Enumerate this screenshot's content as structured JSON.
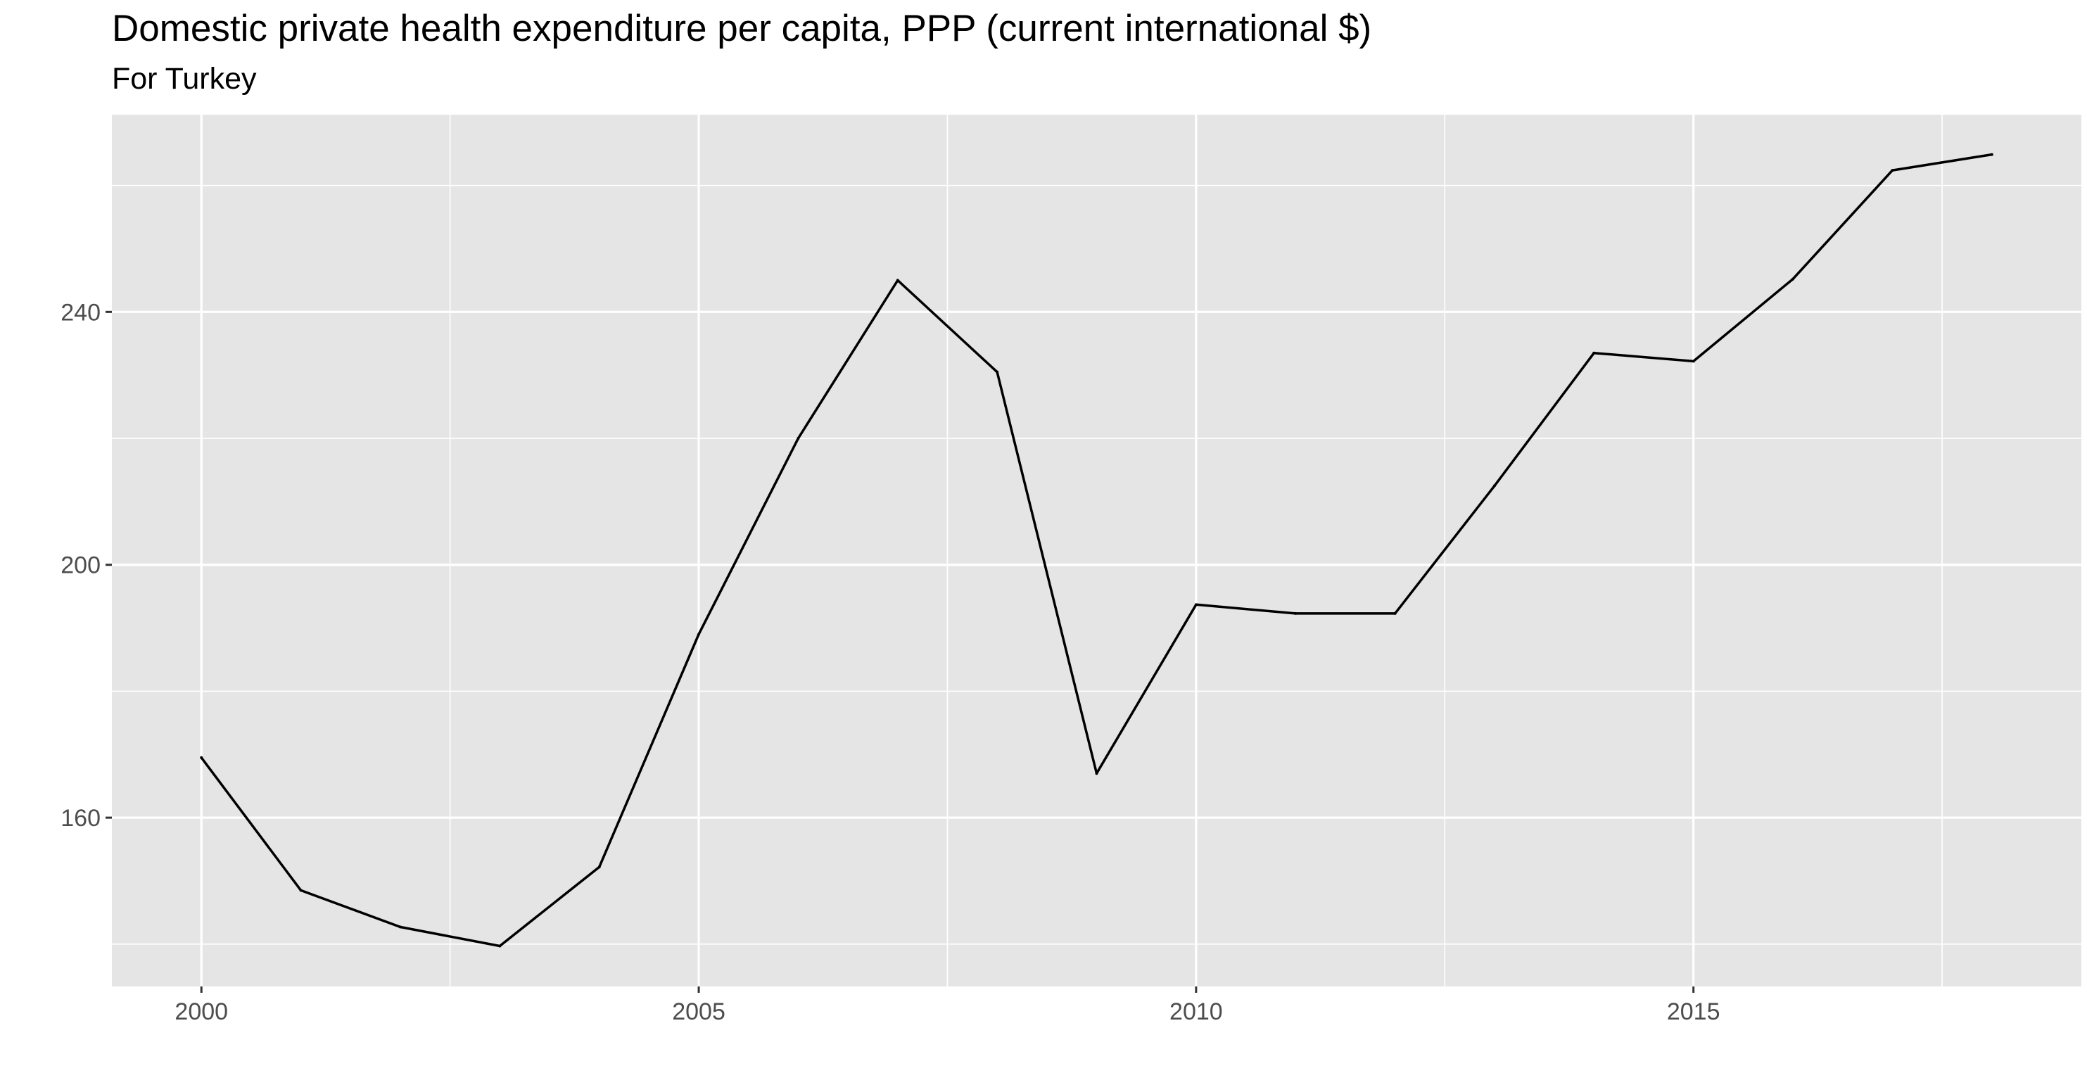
{
  "chart_data": {
    "type": "line",
    "title": "Domestic private health expenditure per capita, PPP (current international $)",
    "subtitle": "For Turkey",
    "xlabel": "",
    "ylabel": "",
    "x": [
      2000,
      2001,
      2002,
      2003,
      2004,
      2005,
      2006,
      2007,
      2008,
      2009,
      2010,
      2011,
      2012,
      2013,
      2014,
      2015,
      2016,
      2017,
      2018
    ],
    "values": [
      169.5,
      148.5,
      142.7,
      139.7,
      152.2,
      189.0,
      220.0,
      245.0,
      230.5,
      167.0,
      193.7,
      192.3,
      192.3,
      212.5,
      233.5,
      232.2,
      245.2,
      262.4,
      264.9
    ],
    "xlim": [
      1999.1,
      2018.9
    ],
    "ylim": [
      133.3,
      271.2
    ],
    "x_ticks": [
      2000,
      2005,
      2010,
      2015
    ],
    "y_ticks": [
      160,
      200,
      240
    ],
    "x_tick_labels": [
      "2000",
      "2005",
      "2010",
      "2015"
    ],
    "y_tick_labels": [
      "160",
      "200",
      "240"
    ],
    "grid": true,
    "legend": "none",
    "colors": {
      "panel": "#e5e5e5",
      "grid": "#ffffff",
      "line": "#000000",
      "tick_text": "#4d4d4d"
    }
  }
}
